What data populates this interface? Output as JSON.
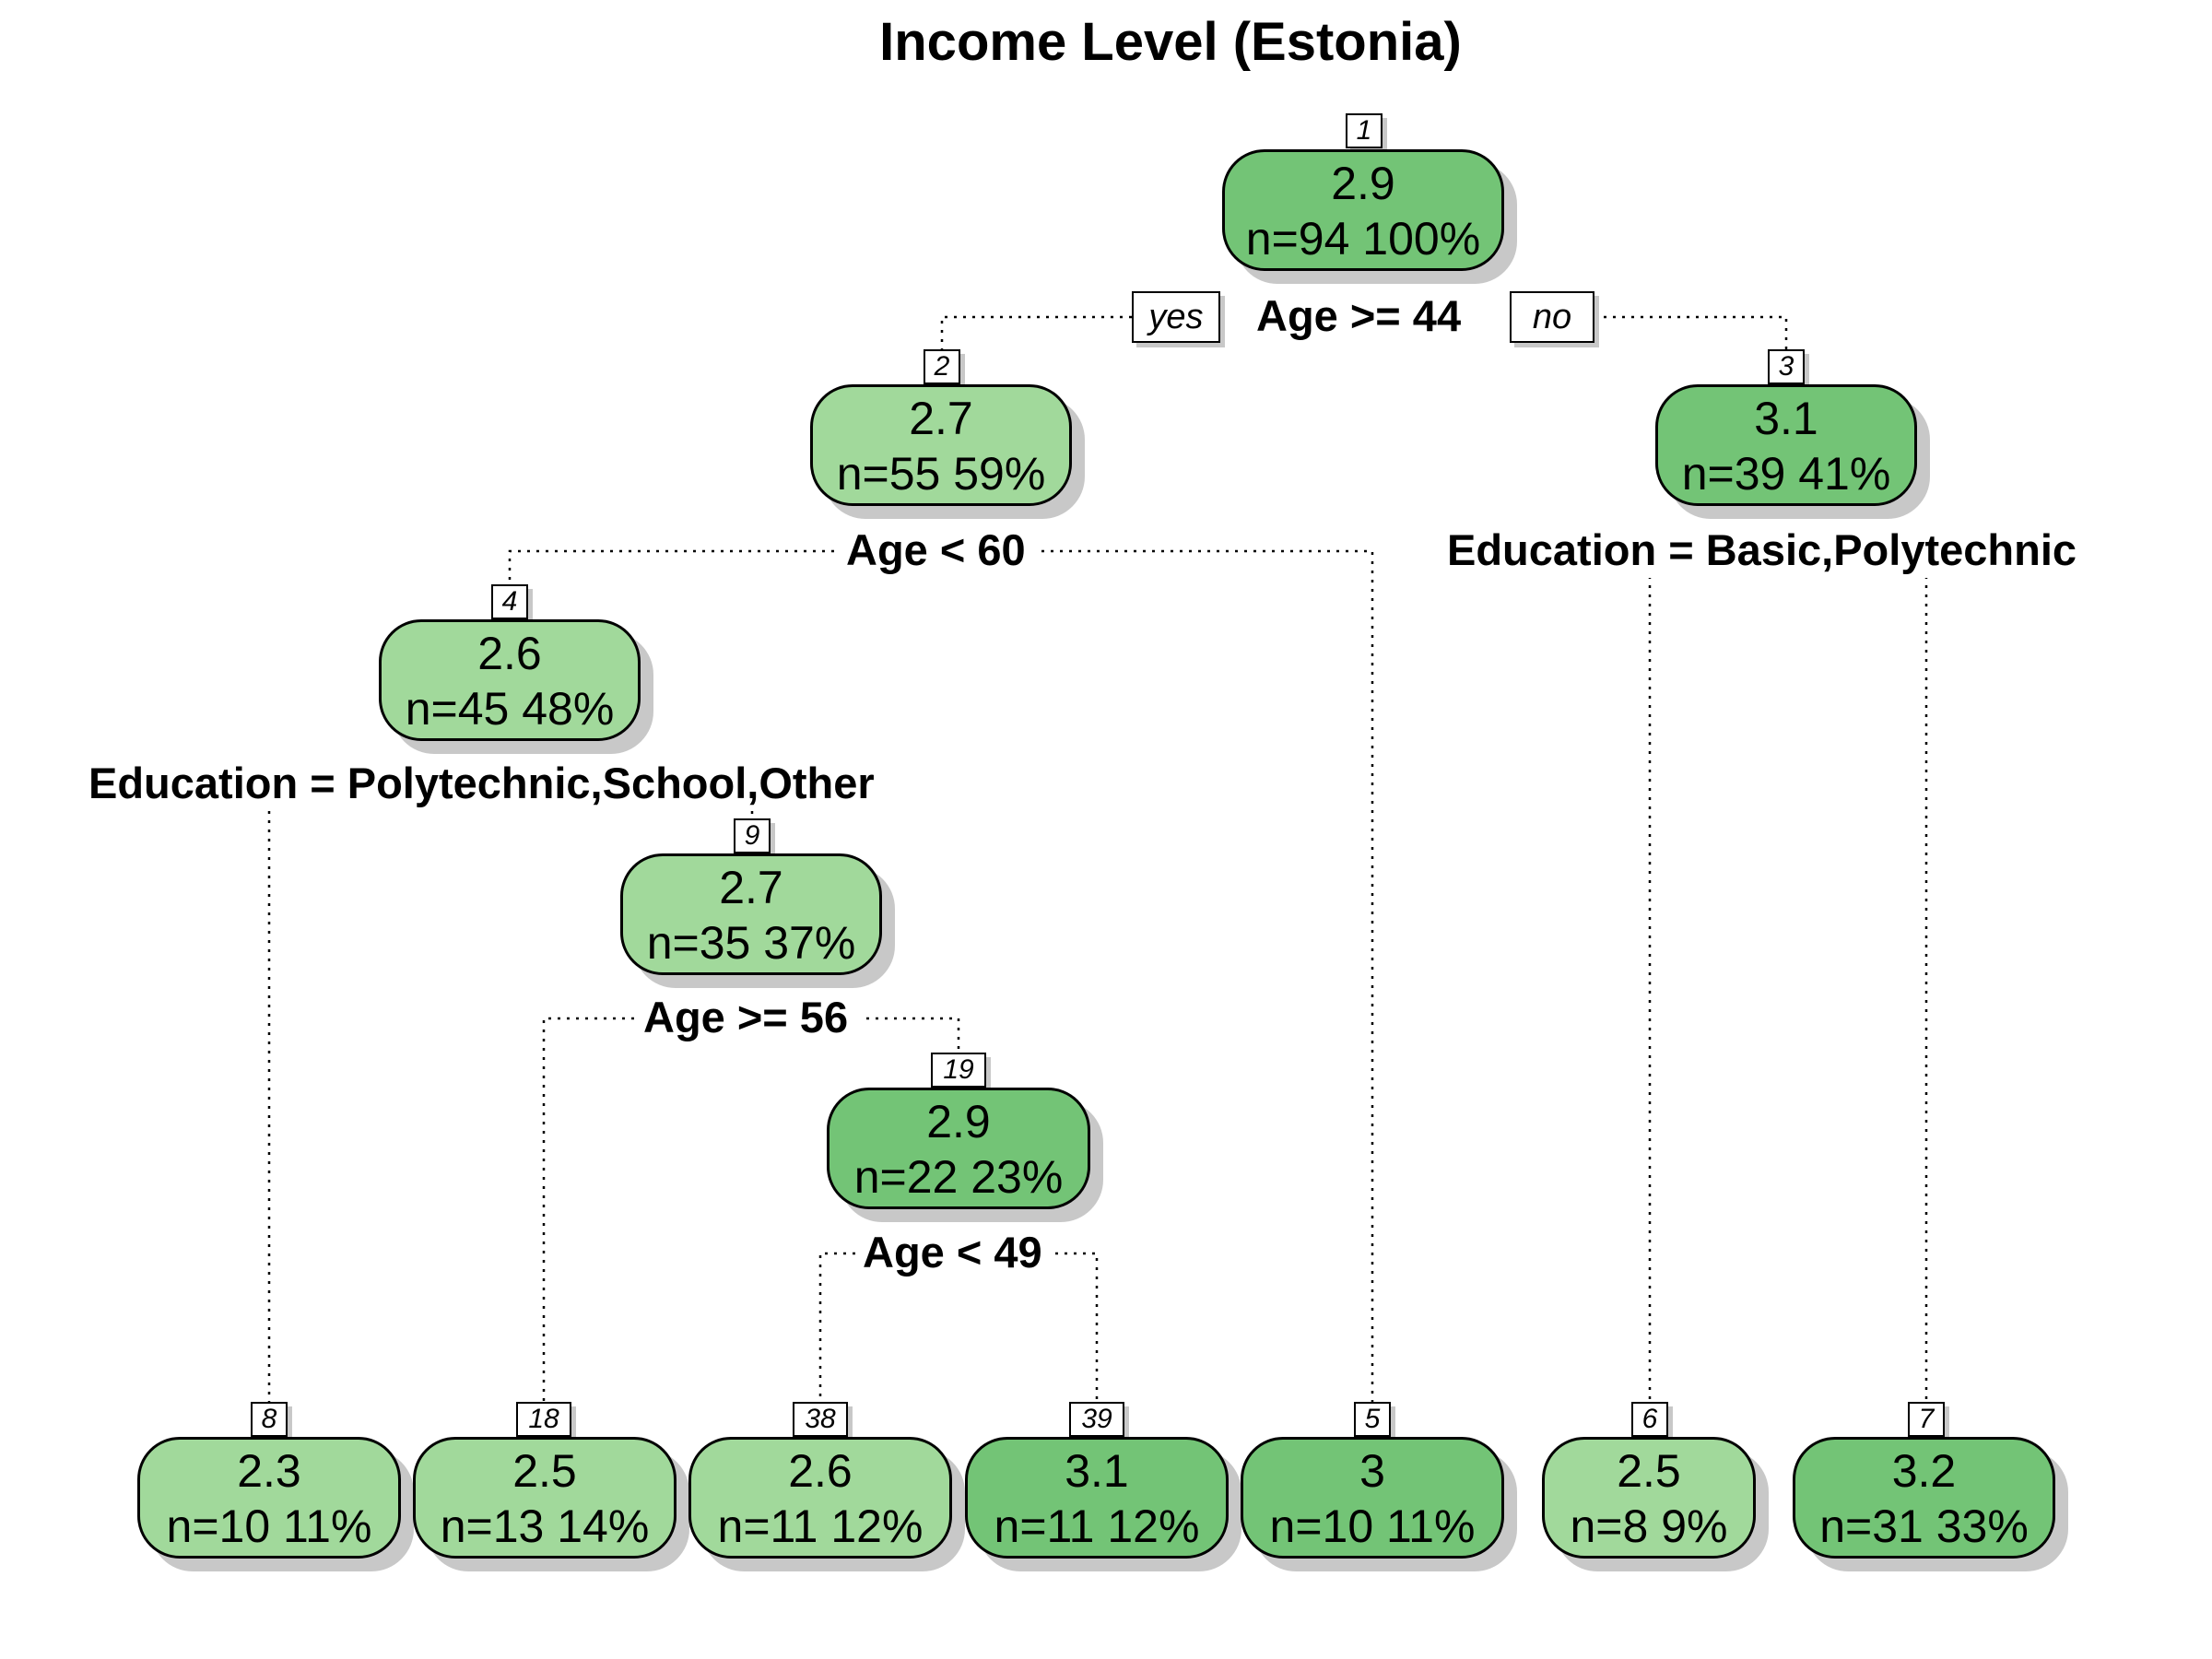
{
  "title": "Income Level (Estonia)",
  "colors": {
    "light": "#a1d99b",
    "dark": "#73c476"
  },
  "nodes": {
    "n1": {
      "id": "1",
      "value": "2.9",
      "stats": "n=94  100%"
    },
    "n2": {
      "id": "2",
      "value": "2.7",
      "stats": "n=55  59%"
    },
    "n3": {
      "id": "3",
      "value": "3.1",
      "stats": "n=39  41%"
    },
    "n4": {
      "id": "4",
      "value": "2.6",
      "stats": "n=45  48%"
    },
    "n9": {
      "id": "9",
      "value": "2.7",
      "stats": "n=35  37%"
    },
    "n19": {
      "id": "19",
      "value": "2.9",
      "stats": "n=22  23%"
    },
    "n8": {
      "id": "8",
      "value": "2.3",
      "stats": "n=10  11%"
    },
    "n18": {
      "id": "18",
      "value": "2.5",
      "stats": "n=13  14%"
    },
    "n38": {
      "id": "38",
      "value": "2.6",
      "stats": "n=11  12%"
    },
    "n39": {
      "id": "39",
      "value": "3.1",
      "stats": "n=11  12%"
    },
    "n5": {
      "id": "5",
      "value": "3",
      "stats": "n=10  11%"
    },
    "n6": {
      "id": "6",
      "value": "2.5",
      "stats": "n=8  9%"
    },
    "n7": {
      "id": "7",
      "value": "3.2",
      "stats": "n=31  33%"
    }
  },
  "splits": {
    "s1": "Age >= 44",
    "s2": "Age < 60",
    "s3": "Education = Basic,Polytechnic",
    "s4": "Education = Polytechnic,School,Other",
    "s9": "Age >= 56",
    "s19": "Age < 49"
  },
  "branch_labels": {
    "yes": "yes",
    "no": "no"
  }
}
